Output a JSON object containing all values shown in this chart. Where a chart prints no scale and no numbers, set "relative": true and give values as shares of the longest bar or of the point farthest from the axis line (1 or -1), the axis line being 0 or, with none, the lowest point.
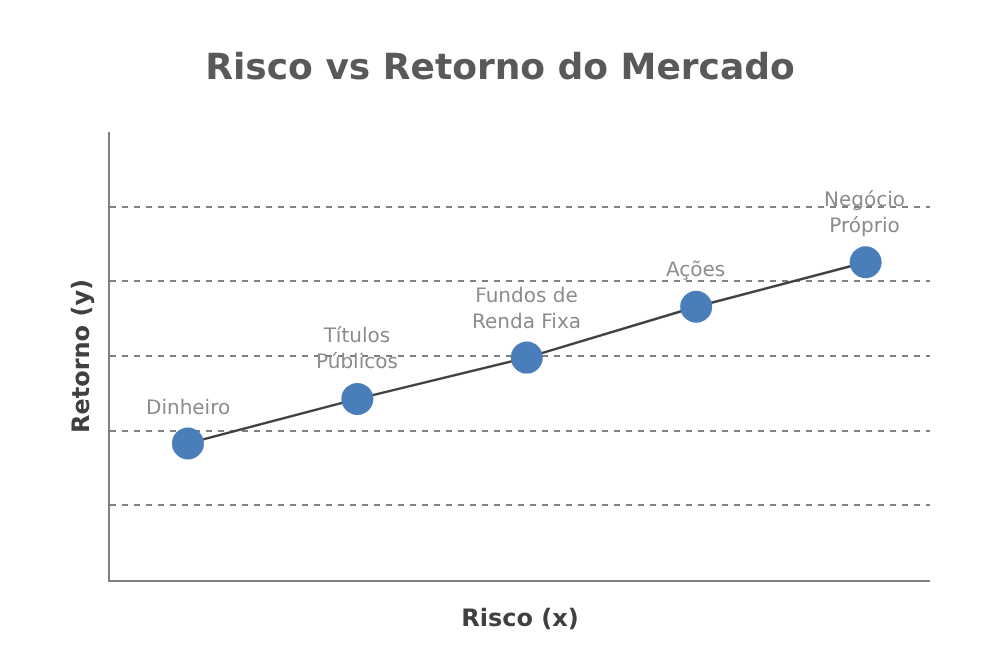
{
  "chart_data": {
    "type": "line",
    "title": "Risco vs Retorno do Mercado",
    "xlabel": "Risco (x)",
    "ylabel": "Retorno (y)",
    "relative": true,
    "categories": [
      null,
      null,
      null,
      null,
      null
    ],
    "tick_labels": false,
    "grid": "y",
    "marker": "circle",
    "line_style": "solid",
    "series": [
      {
        "color": "#404040",
        "colors": [
          "#4a7ebb",
          "#4a7ebb",
          "#4a7ebb",
          "#4a7ebb",
          "#4a7ebb"
        ],
        "values": [
          0.43,
          0.57,
          0.7,
          0.86,
          1.0
        ]
      }
    ],
    "annotations": [
      "Dinheiro",
      "Títulos\nPúblicos",
      "Fundos de\nRenda Fixa",
      "Ações",
      "Negócio\nPróprio"
    ]
  }
}
